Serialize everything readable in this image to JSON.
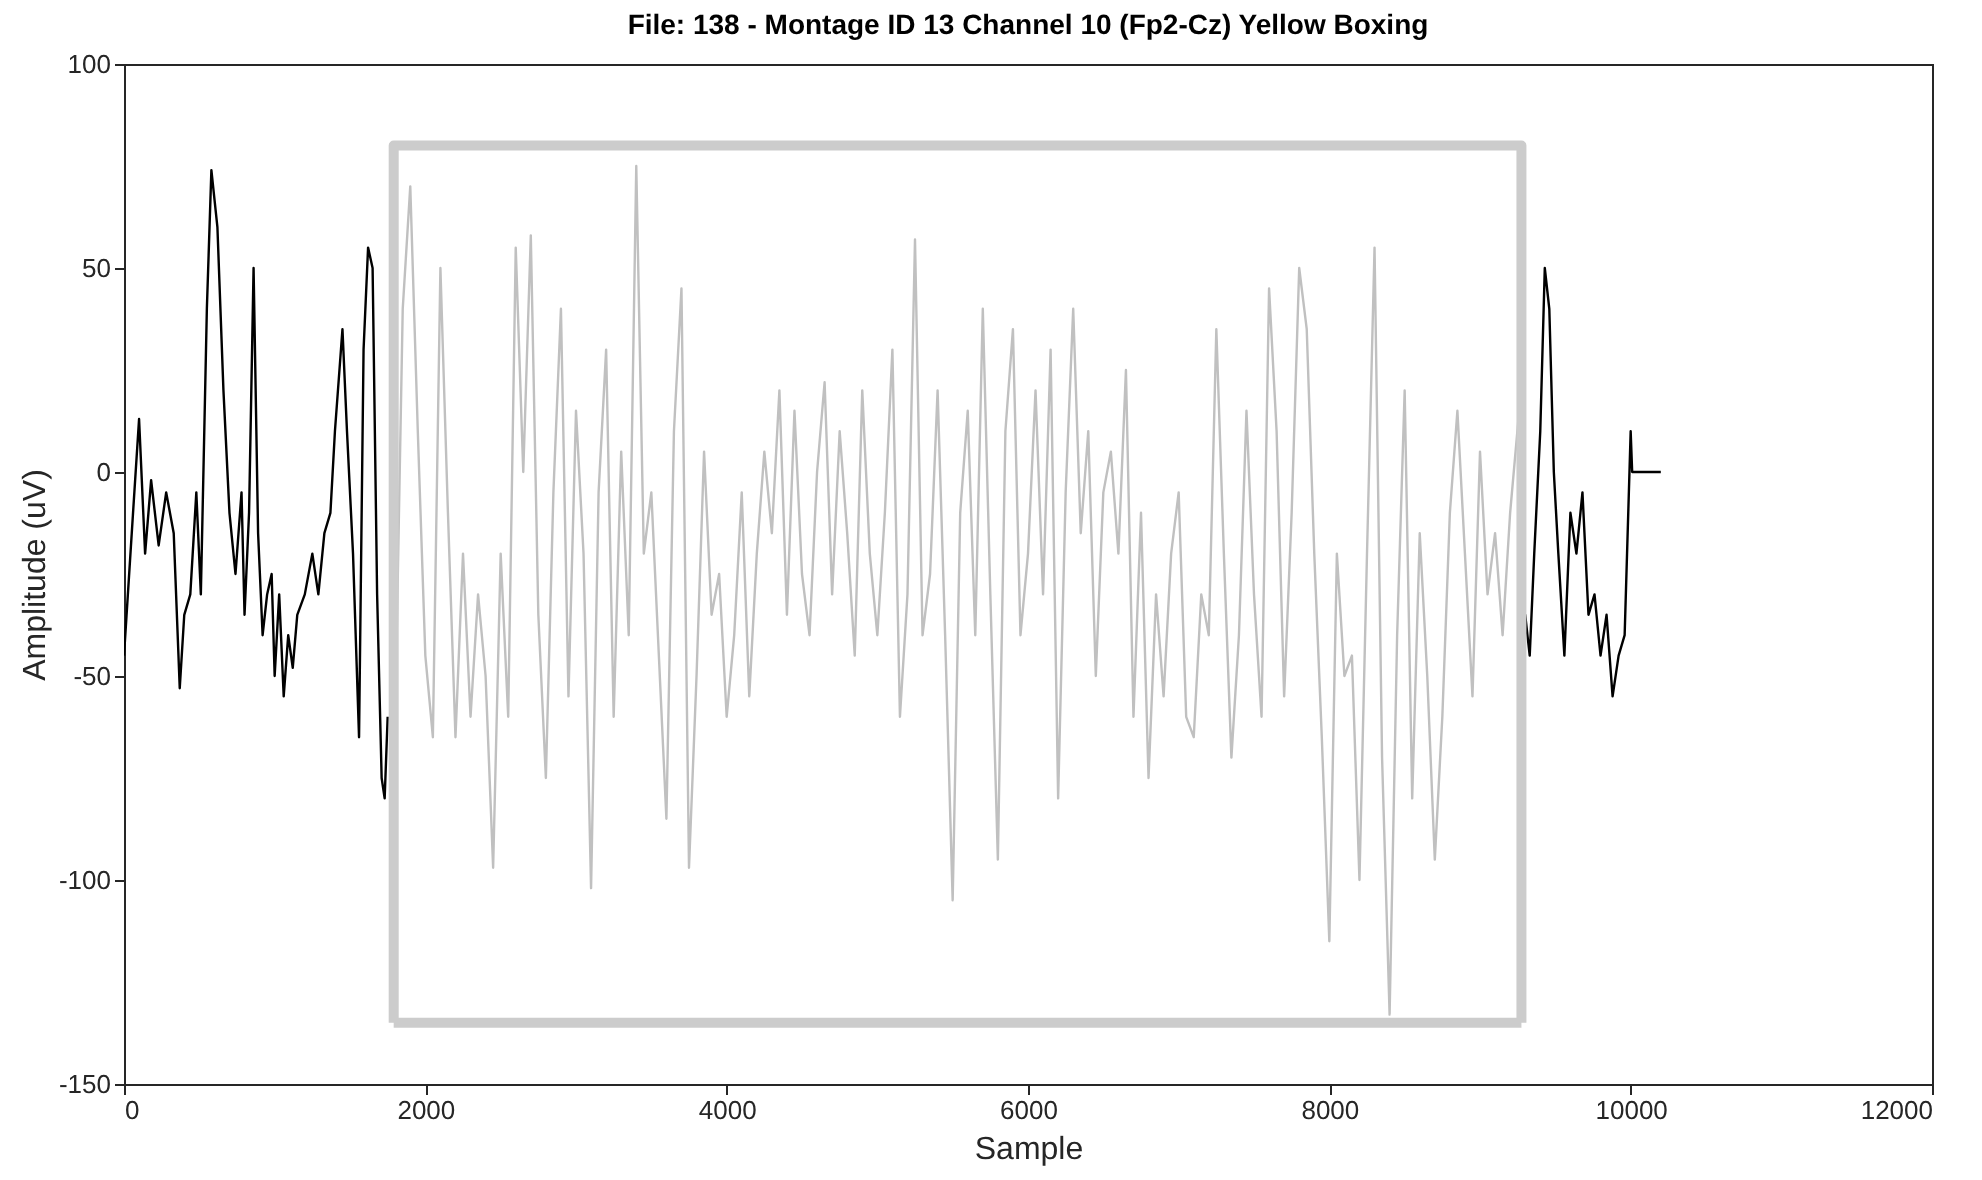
{
  "chart_data": {
    "type": "line",
    "title": "File: 138 - Montage ID 13 Channel 10 (Fp2-Cz) Yellow Boxing",
    "xlabel": "Sample",
    "ylabel": "Amplitude (uV)",
    "xlim": [
      0,
      12000
    ],
    "xticks": [
      0,
      2000,
      4000,
      6000,
      8000,
      10000,
      12000
    ],
    "ylim": [
      -150,
      100
    ],
    "yticks": [
      -150,
      -100,
      -50,
      0,
      50,
      100
    ],
    "grid": false,
    "marker": "none",
    "line_style": "solid",
    "series": [
      {
        "color": "#000000",
        "x": [
          0,
          60,
          100,
          140,
          180,
          230,
          280,
          330,
          370,
          400,
          440,
          480,
          510,
          550,
          580,
          620,
          660,
          700,
          740,
          780,
          800,
          830,
          860,
          890,
          920,
          950,
          980,
          1000,
          1030,
          1060,
          1090,
          1120,
          1150,
          1200,
          1250,
          1290,
          1330,
          1370,
          1400,
          1430,
          1450,
          1480,
          1520,
          1560,
          1590,
          1620,
          1650,
          1680,
          1710,
          1730,
          1750
        ],
        "values": [
          -45,
          -10,
          13,
          -20,
          -2,
          -18,
          -5,
          -15,
          -53,
          -35,
          -30,
          -5,
          -30,
          40,
          74,
          60,
          20,
          -10,
          -25,
          -5,
          -35,
          -10,
          50,
          -15,
          -40,
          -30,
          -25,
          -50,
          -30,
          -55,
          -40,
          -48,
          -35,
          -30,
          -20,
          -30,
          -15,
          -10,
          10,
          25,
          35,
          10,
          -20,
          -65,
          30,
          55,
          50,
          -30,
          -75,
          -80,
          -60
        ]
      },
      {
        "color": "#c0c0c0",
        "x": [
          1795,
          1800,
          1850,
          1900,
          1950,
          2000,
          2050,
          2100,
          2150,
          2200,
          2250,
          2300,
          2350,
          2400,
          2450,
          2500,
          2550,
          2600,
          2650,
          2700,
          2750,
          2800,
          2850,
          2900,
          2950,
          3000,
          3050,
          3100,
          3150,
          3200,
          3250,
          3300,
          3350,
          3400,
          3450,
          3500,
          3550,
          3600,
          3650,
          3700,
          3750,
          3800,
          3850,
          3900,
          3950,
          4000,
          4050,
          4100,
          4150,
          4200,
          4250,
          4300,
          4350,
          4400,
          4450,
          4500,
          4550,
          4600,
          4650,
          4700,
          4750,
          4800,
          4850,
          4900,
          4950,
          5000,
          5050,
          5100,
          5150,
          5200,
          5250,
          5300,
          5350,
          5400,
          5450,
          5500,
          5550,
          5600,
          5650,
          5700,
          5750,
          5800,
          5850,
          5900,
          5950,
          6000,
          6050,
          6100,
          6150,
          6200,
          6250,
          6300,
          6350,
          6400,
          6450,
          6500,
          6550,
          6600,
          6650,
          6700,
          6750,
          6800,
          6850,
          6900,
          6950,
          7000,
          7050,
          7100,
          7150,
          7200,
          7250,
          7300,
          7350,
          7400,
          7450,
          7500,
          7550,
          7600,
          7650,
          7700,
          7750,
          7800,
          7850,
          7900,
          7950,
          8000,
          8050,
          8100,
          8150,
          8200,
          8250,
          8300,
          8350,
          8400,
          8450,
          8500,
          8550,
          8600,
          8650,
          8700,
          8750,
          8800,
          8850,
          8900,
          8950,
          9000,
          9050,
          9100,
          9150,
          9200,
          9260
        ],
        "values": [
          -10,
          -60,
          40,
          70,
          10,
          -45,
          -65,
          50,
          -10,
          -65,
          -20,
          -60,
          -30,
          -50,
          -97,
          -20,
          -60,
          55,
          0,
          58,
          -35,
          -75,
          -5,
          40,
          -55,
          15,
          -20,
          -102,
          -5,
          30,
          -60,
          5,
          -40,
          75,
          -20,
          -5,
          -45,
          -85,
          10,
          45,
          -97,
          -50,
          5,
          -35,
          -25,
          -60,
          -40,
          -5,
          -55,
          -20,
          5,
          -15,
          20,
          -35,
          15,
          -25,
          -40,
          0,
          22,
          -30,
          10,
          -15,
          -45,
          20,
          -20,
          -40,
          -10,
          30,
          -60,
          -30,
          57,
          -40,
          -25,
          20,
          -40,
          -105,
          -10,
          15,
          -40,
          40,
          -30,
          -95,
          10,
          35,
          -40,
          -20,
          20,
          -30,
          30,
          -80,
          -5,
          40,
          -15,
          10,
          -50,
          -5,
          5,
          -20,
          25,
          -60,
          -10,
          -75,
          -30,
          -55,
          -20,
          -5,
          -60,
          -65,
          -30,
          -40,
          35,
          -20,
          -70,
          -40,
          15,
          -30,
          -60,
          45,
          10,
          -55,
          -10,
          50,
          35,
          -20,
          -65,
          -115,
          -20,
          -50,
          -45,
          -100,
          -20,
          55,
          -70,
          -133,
          -40,
          20,
          -80,
          -15,
          -50,
          -95,
          -60,
          -10,
          15,
          -20,
          -55,
          5,
          -30,
          -15,
          -40,
          -10,
          15
        ]
      },
      {
        "color": "#000000",
        "x": [
          9270,
          9300,
          9330,
          9360,
          9400,
          9430,
          9460,
          9490,
          9520,
          9560,
          9600,
          9640,
          9680,
          9720,
          9760,
          9800,
          9840,
          9880,
          9920,
          9960,
          10000,
          10010,
          10200
        ],
        "values": [
          -40,
          -35,
          -45,
          -20,
          10,
          50,
          40,
          0,
          -20,
          -45,
          -10,
          -20,
          -5,
          -35,
          -30,
          -45,
          -35,
          -55,
          -45,
          -40,
          10,
          0,
          0
        ]
      },
      {
        "color": "#cccccc",
        "x": [
          1790,
          1790,
          9275,
          9275
        ],
        "values": [
          -135,
          80,
          80,
          -135
        ]
      },
      {
        "color": "#cccccc",
        "x": [
          1790,
          9275
        ],
        "values": [
          -135,
          -135
        ]
      }
    ]
  }
}
